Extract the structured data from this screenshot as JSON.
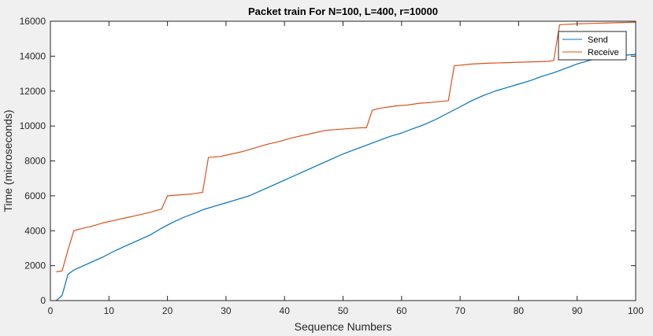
{
  "chart_data": {
    "type": "line",
    "title": "Packet train For N=100, L=400, r=10000",
    "xlabel": "Sequence Numbers",
    "ylabel": "Time (microseconds)",
    "xlim": [
      0,
      100
    ],
    "ylim": [
      0,
      16000
    ],
    "xticks": [
      0,
      10,
      20,
      30,
      40,
      50,
      60,
      70,
      80,
      90,
      100
    ],
    "yticks": [
      0,
      2000,
      4000,
      6000,
      8000,
      10000,
      12000,
      14000,
      16000
    ],
    "grid": false,
    "legend_position": "top-right",
    "background_color": "#ffffff",
    "figure_color": "#f0f0f0",
    "series": [
      {
        "name": "Send",
        "color": "#0072BD",
        "x": [
          1,
          2,
          3,
          4,
          5,
          7,
          9,
          11,
          13,
          15,
          17,
          18,
          19,
          21,
          23,
          25,
          26,
          28,
          30,
          32,
          34,
          36,
          38,
          40,
          42,
          44,
          46,
          48,
          50,
          52,
          54,
          56,
          58,
          60,
          62,
          64,
          66,
          68,
          70,
          72,
          74,
          76,
          78,
          80,
          82,
          84,
          86,
          88,
          90,
          92,
          94,
          96,
          98,
          100
        ],
        "y": [
          0,
          300,
          1500,
          1750,
          1900,
          2200,
          2500,
          2850,
          3150,
          3450,
          3750,
          3950,
          4150,
          4500,
          4800,
          5050,
          5200,
          5400,
          5600,
          5800,
          6000,
          6300,
          6600,
          6900,
          7200,
          7500,
          7800,
          8100,
          8400,
          8650,
          8900,
          9150,
          9400,
          9600,
          9850,
          10100,
          10400,
          10750,
          11100,
          11450,
          11750,
          12000,
          12200,
          12400,
          12600,
          12850,
          13050,
          13300,
          13550,
          13750,
          13900,
          14000,
          14050,
          14100
        ]
      },
      {
        "name": "Receive",
        "color": "#D95319",
        "x": [
          1,
          2,
          3,
          4,
          5,
          7,
          9,
          11,
          13,
          15,
          17,
          18,
          19,
          20,
          22,
          24,
          25,
          26,
          27,
          29,
          31,
          33,
          35,
          37,
          39,
          41,
          43,
          45,
          47,
          49,
          51,
          53,
          54,
          55,
          56,
          57,
          58,
          59,
          61,
          63,
          65,
          68,
          69,
          72,
          75,
          80,
          85,
          86,
          87,
          90,
          95,
          100
        ],
        "y": [
          1650,
          1700,
          2900,
          4000,
          4100,
          4250,
          4450,
          4600,
          4750,
          4900,
          5050,
          5150,
          5250,
          6000,
          6050,
          6100,
          6150,
          6200,
          8200,
          8250,
          8400,
          8550,
          8750,
          8950,
          9100,
          9300,
          9450,
          9600,
          9750,
          9800,
          9850,
          9900,
          9900,
          10900,
          11000,
          11050,
          11100,
          11150,
          11200,
          11300,
          11350,
          11450,
          13450,
          13550,
          13600,
          13650,
          13700,
          13750,
          15800,
          15850,
          15900,
          15950
        ]
      }
    ]
  }
}
